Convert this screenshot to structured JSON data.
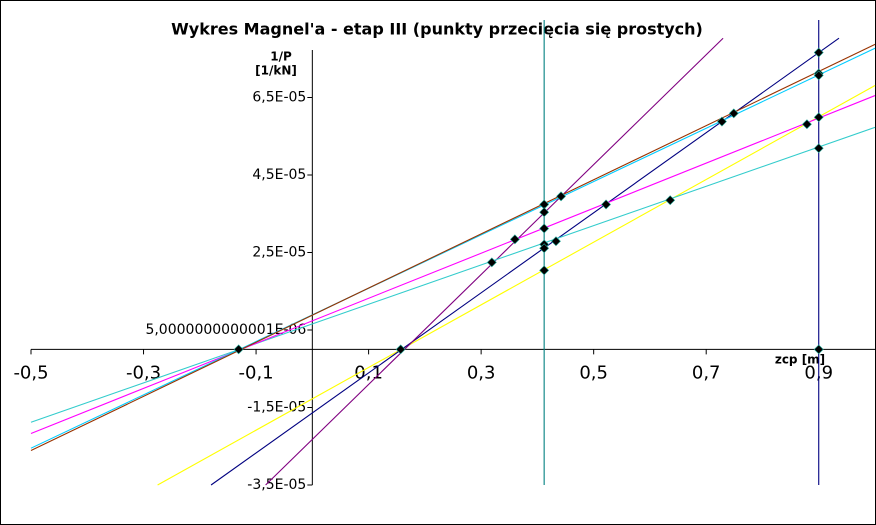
{
  "chart_data": {
    "type": "line",
    "title": "Wykres Magnel'a - etap III (punkty przecięcia się prostych)",
    "y_label_lines": [
      "1/P",
      "[1/kN]"
    ],
    "x_label": "zcp [m]",
    "xlim": [
      -0.5,
      1.0
    ],
    "ylim": [
      -3.5e-05,
      8.5e-05
    ],
    "xticks": [
      {
        "value": -0.5,
        "label": "-0,5"
      },
      {
        "value": -0.3,
        "label": "-0,3"
      },
      {
        "value": -0.1,
        "label": "-0,1"
      },
      {
        "value": 0.1,
        "label": "0,1"
      },
      {
        "value": 0.3,
        "label": "0,3"
      },
      {
        "value": 0.5,
        "label": "0,5"
      },
      {
        "value": 0.7,
        "label": "0,7"
      },
      {
        "value": 0.9,
        "label": "0,9"
      }
    ],
    "yticks": [
      {
        "value": -3.5e-05,
        "label": "-3,5E-05"
      },
      {
        "value": -1.5e-05,
        "label": "-1,5E-05"
      },
      {
        "value": 5.0000000000001e-06,
        "label": "5,0000000000001E-06"
      },
      {
        "value": 2.5e-05,
        "label": "2,5E-05"
      },
      {
        "value": 4.5e-05,
        "label": "4,5E-05"
      },
      {
        "value": 6.5e-05,
        "label": "6,5E-05"
      }
    ],
    "series": [
      {
        "color": "#ffff00",
        "x": [
          -0.275,
          1.0
        ],
        "values": [
          -3.5e-05,
          6.81e-05
        ]
      },
      {
        "color": "#000080",
        "x": [
          -0.18,
          0.936
        ],
        "values": [
          -3.5e-05,
          8.03e-05
        ]
      },
      {
        "color": "#800080",
        "x": [
          -0.083,
          0.73
        ],
        "values": [
          -3.5e-05,
          8.03e-05
        ]
      },
      {
        "color": "#33cccc",
        "x": [
          -0.5,
          1.0
        ],
        "values": [
          -1.88e-05,
          5.73e-05
        ]
      },
      {
        "color": "#ff00ff",
        "x": [
          -0.5,
          1.0
        ],
        "values": [
          -2.17e-05,
          6.55e-05
        ]
      },
      {
        "color": "#00ccff",
        "x": [
          -0.5,
          1.0
        ],
        "values": [
          -2.55e-05,
          7.77e-05
        ]
      },
      {
        "color": "#993300",
        "x": [
          -0.5,
          1.0
        ],
        "values": [
          -2.61e-05,
          7.87e-05
        ]
      },
      {
        "color": "#008080",
        "x": [
          0.412,
          0.412
        ],
        "values": [
          -3.5e-05,
          8.5e-05
        ]
      },
      {
        "color": "#000080",
        "x": [
          0.9,
          0.9
        ],
        "values": [
          -3.5e-05,
          8.5e-05
        ]
      },
      {
        "color": "#000000",
        "mode": "markers",
        "x": [
          -0.131,
          0.157,
          0.319,
          0.36,
          0.412,
          0.412,
          0.412,
          0.412,
          0.412,
          0.412,
          0.433,
          0.442,
          0.522,
          0.636,
          0.728,
          0.749,
          0.879,
          0.9,
          0.9,
          0.9,
          0.9,
          0.9,
          0.9
        ],
        "values": [
          0,
          0,
          2.245e-05,
          2.84e-05,
          3.74e-05,
          3.54e-05,
          3.12e-05,
          2.71e-05,
          2.61e-05,
          2.04e-05,
          2.79e-05,
          3.95e-05,
          3.74e-05,
          3.85e-05,
          5.88e-05,
          6.09e-05,
          5.81e-05,
          7.66e-05,
          7.12e-05,
          7.07e-05,
          5.99e-05,
          5.19e-05,
          0
        ]
      }
    ]
  }
}
